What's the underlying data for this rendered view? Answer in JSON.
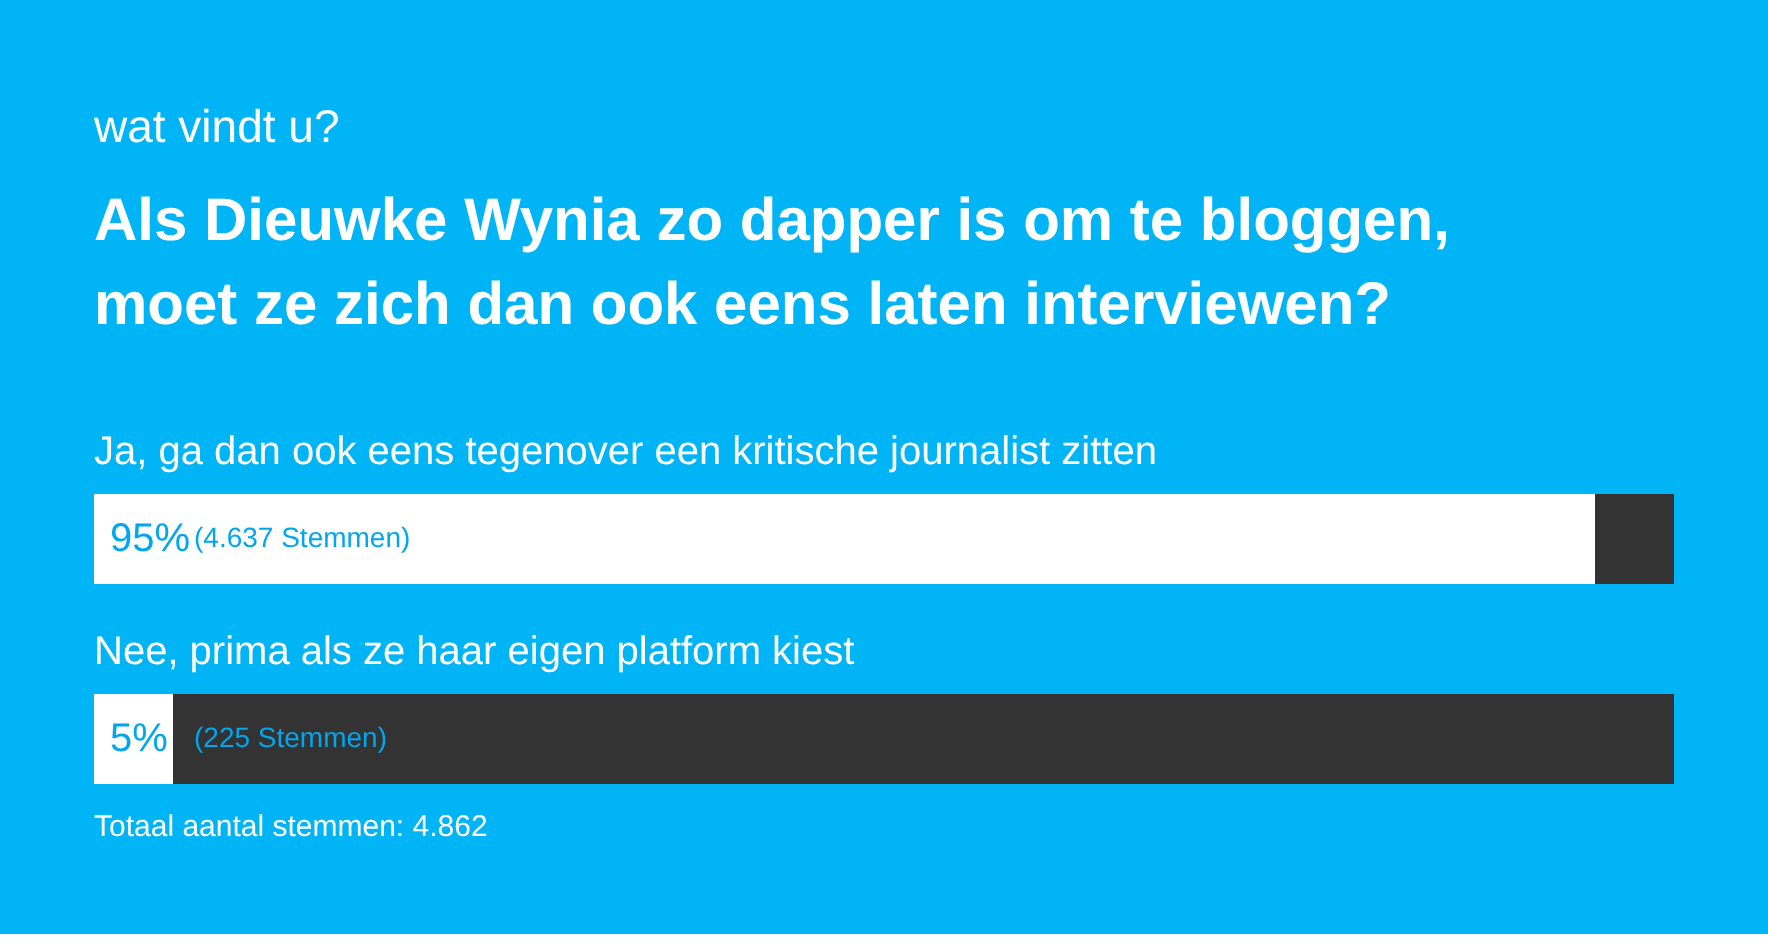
{
  "chart_data": {
    "type": "bar",
    "orientation": "horizontal",
    "subtitle": "wat vindt u?",
    "title": "Als Dieuwke Wynia zo dapper is om te bloggen,\nmoet ze zich dan ook eens laten interviewen?",
    "categories": [
      "Ja, ga dan ook eens tegenover een kritische journalist zitten",
      "Nee, prima als ze haar eigen platform kiest"
    ],
    "series": [
      {
        "color": "#ffffff",
        "values": [
          95,
          5
        ],
        "value_labels": [
          "95%",
          "5%"
        ]
      }
    ],
    "xlim": [
      0,
      100
    ],
    "tick_labels": false,
    "annotations": [
      "(4.637 Stemmen)",
      "(225 Stemmen)",
      "Totaal aantal stemmen: 4.862"
    ]
  }
}
